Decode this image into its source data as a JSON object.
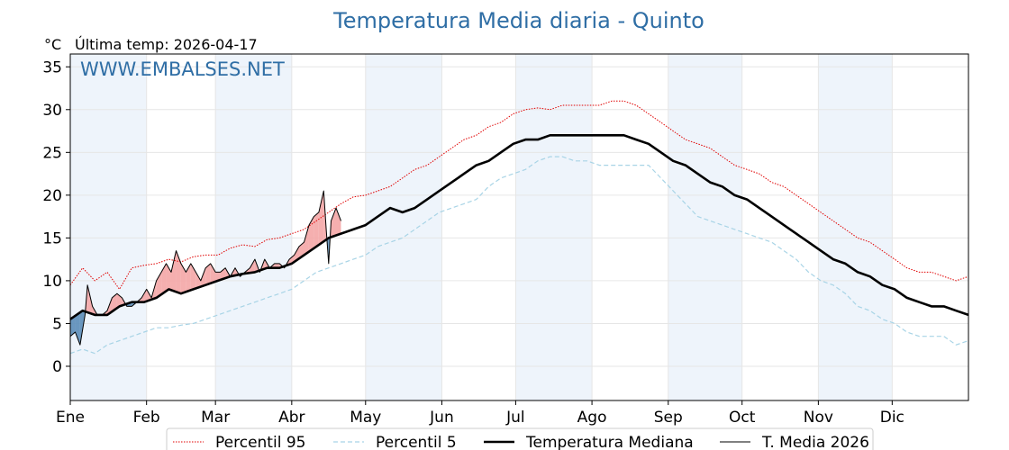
{
  "chart_data": {
    "type": "line",
    "title": "Temperatura Media diaria - Quinto",
    "unit_label": "°C",
    "last_temp_label": "Última temp: 2026-04-17",
    "watermark": "WWW.EMBALSES.NET",
    "xlabel": "",
    "ylabel": "",
    "x_ticks": [
      "Ene",
      "Feb",
      "Mar",
      "Abr",
      "May",
      "Jun",
      "Jul",
      "Ago",
      "Sep",
      "Oct",
      "Nov",
      "Dic"
    ],
    "x_tick_days": [
      0,
      31,
      59,
      90,
      120,
      151,
      181,
      212,
      243,
      273,
      304,
      334
    ],
    "y_ticks": [
      0,
      5,
      10,
      15,
      20,
      25,
      30,
      35
    ],
    "xlim": [
      0,
      365
    ],
    "ylim": [
      -4,
      36.5
    ],
    "grid": true,
    "legend_position": "bottom-center",
    "colors": {
      "p95": "#e00000",
      "p5": "#a8d4e6",
      "median": "#000000",
      "current": "#000000",
      "above_fill": "#f4a6a6",
      "below_fill": "#5b8db8",
      "band": "#eef4fb",
      "title": "#2f6ea5"
    },
    "series": [
      {
        "name": "Percentil 95",
        "style": "dotted",
        "points": [
          [
            0,
            9.5
          ],
          [
            5,
            11.5
          ],
          [
            10,
            10
          ],
          [
            15,
            11
          ],
          [
            20,
            9
          ],
          [
            25,
            11.5
          ],
          [
            30,
            11.8
          ],
          [
            35,
            12
          ],
          [
            40,
            12.5
          ],
          [
            45,
            12.2
          ],
          [
            50,
            12.8
          ],
          [
            55,
            13
          ],
          [
            60,
            13
          ],
          [
            65,
            13.8
          ],
          [
            70,
            14.2
          ],
          [
            75,
            14
          ],
          [
            80,
            14.8
          ],
          [
            85,
            15
          ],
          [
            90,
            15.5
          ],
          [
            95,
            16
          ],
          [
            100,
            17
          ],
          [
            105,
            18
          ],
          [
            110,
            19
          ],
          [
            115,
            19.8
          ],
          [
            120,
            20
          ],
          [
            125,
            20.5
          ],
          [
            130,
            21
          ],
          [
            135,
            22
          ],
          [
            140,
            23
          ],
          [
            145,
            23.5
          ],
          [
            150,
            24.5
          ],
          [
            155,
            25.5
          ],
          [
            160,
            26.5
          ],
          [
            165,
            27
          ],
          [
            170,
            28
          ],
          [
            175,
            28.5
          ],
          [
            180,
            29.5
          ],
          [
            185,
            30
          ],
          [
            190,
            30.2
          ],
          [
            195,
            30
          ],
          [
            200,
            30.5
          ],
          [
            205,
            30.5
          ],
          [
            210,
            30.5
          ],
          [
            215,
            30.5
          ],
          [
            220,
            31
          ],
          [
            225,
            31
          ],
          [
            230,
            30.5
          ],
          [
            235,
            29.5
          ],
          [
            240,
            28.5
          ],
          [
            245,
            27.5
          ],
          [
            250,
            26.5
          ],
          [
            255,
            26
          ],
          [
            260,
            25.5
          ],
          [
            265,
            24.5
          ],
          [
            270,
            23.5
          ],
          [
            275,
            23
          ],
          [
            280,
            22.5
          ],
          [
            285,
            21.5
          ],
          [
            290,
            21
          ],
          [
            295,
            20
          ],
          [
            300,
            19
          ],
          [
            305,
            18
          ],
          [
            310,
            17
          ],
          [
            315,
            16
          ],
          [
            320,
            15
          ],
          [
            325,
            14.5
          ],
          [
            330,
            13.5
          ],
          [
            335,
            12.5
          ],
          [
            340,
            11.5
          ],
          [
            345,
            11
          ],
          [
            350,
            11
          ],
          [
            355,
            10.5
          ],
          [
            360,
            10
          ],
          [
            365,
            10.5
          ]
        ]
      },
      {
        "name": "Percentil 5",
        "style": "dashed",
        "points": [
          [
            0,
            1.5
          ],
          [
            5,
            2
          ],
          [
            10,
            1.5
          ],
          [
            15,
            2.5
          ],
          [
            20,
            3
          ],
          [
            25,
            3.5
          ],
          [
            30,
            4
          ],
          [
            35,
            4.5
          ],
          [
            40,
            4.5
          ],
          [
            45,
            4.8
          ],
          [
            50,
            5
          ],
          [
            55,
            5.5
          ],
          [
            60,
            6
          ],
          [
            65,
            6.5
          ],
          [
            70,
            7
          ],
          [
            75,
            7.5
          ],
          [
            80,
            8
          ],
          [
            85,
            8.5
          ],
          [
            90,
            9
          ],
          [
            95,
            10
          ],
          [
            100,
            11
          ],
          [
            105,
            11.5
          ],
          [
            110,
            12
          ],
          [
            115,
            12.5
          ],
          [
            120,
            13
          ],
          [
            125,
            14
          ],
          [
            130,
            14.5
          ],
          [
            135,
            15
          ],
          [
            140,
            16
          ],
          [
            145,
            17
          ],
          [
            150,
            18
          ],
          [
            155,
            18.5
          ],
          [
            160,
            19
          ],
          [
            165,
            19.5
          ],
          [
            170,
            21
          ],
          [
            175,
            22
          ],
          [
            180,
            22.5
          ],
          [
            185,
            23
          ],
          [
            190,
            24
          ],
          [
            195,
            24.5
          ],
          [
            200,
            24.5
          ],
          [
            205,
            24
          ],
          [
            210,
            24
          ],
          [
            215,
            23.5
          ],
          [
            220,
            23.5
          ],
          [
            225,
            23.5
          ],
          [
            230,
            23.5
          ],
          [
            235,
            23.5
          ],
          [
            240,
            22
          ],
          [
            245,
            20.5
          ],
          [
            250,
            19
          ],
          [
            255,
            17.5
          ],
          [
            260,
            17
          ],
          [
            265,
            16.5
          ],
          [
            270,
            16
          ],
          [
            275,
            15.5
          ],
          [
            280,
            15
          ],
          [
            285,
            14.5
          ],
          [
            290,
            13.5
          ],
          [
            295,
            12.5
          ],
          [
            300,
            11
          ],
          [
            305,
            10
          ],
          [
            310,
            9.5
          ],
          [
            315,
            8.5
          ],
          [
            320,
            7
          ],
          [
            325,
            6.5
          ],
          [
            330,
            5.5
          ],
          [
            335,
            5
          ],
          [
            340,
            4
          ],
          [
            345,
            3.5
          ],
          [
            350,
            3.5
          ],
          [
            355,
            3.5
          ],
          [
            360,
            2.5
          ],
          [
            365,
            3
          ]
        ]
      },
      {
        "name": "Temperatura Mediana",
        "style": "solid-thick",
        "points": [
          [
            0,
            5.5
          ],
          [
            5,
            6.5
          ],
          [
            10,
            6
          ],
          [
            15,
            6
          ],
          [
            20,
            7
          ],
          [
            25,
            7.5
          ],
          [
            30,
            7.5
          ],
          [
            35,
            8
          ],
          [
            40,
            9
          ],
          [
            45,
            8.5
          ],
          [
            50,
            9
          ],
          [
            55,
            9.5
          ],
          [
            60,
            10
          ],
          [
            65,
            10.5
          ],
          [
            70,
            10.8
          ],
          [
            75,
            11
          ],
          [
            80,
            11.5
          ],
          [
            85,
            11.5
          ],
          [
            90,
            12
          ],
          [
            95,
            13
          ],
          [
            100,
            14
          ],
          [
            105,
            15
          ],
          [
            110,
            15.5
          ],
          [
            115,
            16
          ],
          [
            120,
            16.5
          ],
          [
            125,
            17.5
          ],
          [
            130,
            18.5
          ],
          [
            135,
            18
          ],
          [
            140,
            18.5
          ],
          [
            145,
            19.5
          ],
          [
            150,
            20.5
          ],
          [
            155,
            21.5
          ],
          [
            160,
            22.5
          ],
          [
            165,
            23.5
          ],
          [
            170,
            24
          ],
          [
            175,
            25
          ],
          [
            180,
            26
          ],
          [
            185,
            26.5
          ],
          [
            190,
            26.5
          ],
          [
            195,
            27
          ],
          [
            200,
            27
          ],
          [
            205,
            27
          ],
          [
            210,
            27
          ],
          [
            215,
            27
          ],
          [
            220,
            27
          ],
          [
            225,
            27
          ],
          [
            230,
            26.5
          ],
          [
            235,
            26
          ],
          [
            240,
            25
          ],
          [
            245,
            24
          ],
          [
            250,
            23.5
          ],
          [
            255,
            22.5
          ],
          [
            260,
            21.5
          ],
          [
            265,
            21
          ],
          [
            270,
            20
          ],
          [
            275,
            19.5
          ],
          [
            280,
            18.5
          ],
          [
            285,
            17.5
          ],
          [
            290,
            16.5
          ],
          [
            295,
            15.5
          ],
          [
            300,
            14.5
          ],
          [
            305,
            13.5
          ],
          [
            310,
            12.5
          ],
          [
            315,
            12
          ],
          [
            320,
            11
          ],
          [
            325,
            10.5
          ],
          [
            330,
            9.5
          ],
          [
            335,
            9
          ],
          [
            340,
            8
          ],
          [
            345,
            7.5
          ],
          [
            350,
            7
          ],
          [
            355,
            7
          ],
          [
            360,
            6.5
          ],
          [
            365,
            6
          ]
        ]
      },
      {
        "name": "T. Media 2026",
        "style": "solid-thin",
        "points": [
          [
            0,
            3.5
          ],
          [
            2,
            4
          ],
          [
            4,
            2.5
          ],
          [
            6,
            6
          ],
          [
            7,
            9.5
          ],
          [
            9,
            7
          ],
          [
            11,
            6
          ],
          [
            13,
            6
          ],
          [
            15,
            6.5
          ],
          [
            17,
            8
          ],
          [
            19,
            8.5
          ],
          [
            21,
            8
          ],
          [
            23,
            7
          ],
          [
            25,
            7
          ],
          [
            27,
            7.5
          ],
          [
            29,
            8
          ],
          [
            31,
            9
          ],
          [
            33,
            8
          ],
          [
            35,
            10
          ],
          [
            37,
            11
          ],
          [
            39,
            12
          ],
          [
            41,
            11
          ],
          [
            43,
            13.5
          ],
          [
            45,
            12
          ],
          [
            47,
            11
          ],
          [
            49,
            12
          ],
          [
            51,
            11
          ],
          [
            53,
            10
          ],
          [
            55,
            11.5
          ],
          [
            57,
            12
          ],
          [
            59,
            11
          ],
          [
            61,
            11
          ],
          [
            63,
            11.5
          ],
          [
            65,
            10.5
          ],
          [
            67,
            11.5
          ],
          [
            69,
            10.5
          ],
          [
            71,
            11
          ],
          [
            73,
            11.5
          ],
          [
            75,
            12.5
          ],
          [
            77,
            11
          ],
          [
            79,
            12.5
          ],
          [
            81,
            11.5
          ],
          [
            83,
            12
          ],
          [
            85,
            12
          ],
          [
            87,
            11.5
          ],
          [
            89,
            12.5
          ],
          [
            91,
            13
          ],
          [
            93,
            14
          ],
          [
            95,
            14.5
          ],
          [
            97,
            16.5
          ],
          [
            99,
            17.5
          ],
          [
            101,
            18
          ],
          [
            103,
            20.5
          ],
          [
            104,
            16
          ],
          [
            105,
            12
          ],
          [
            106,
            17
          ],
          [
            108,
            18.5
          ],
          [
            110,
            17
          ]
        ]
      }
    ]
  },
  "legend": {
    "items": [
      {
        "label": "Percentil 95"
      },
      {
        "label": "Percentil 5"
      },
      {
        "label": "Temperatura Mediana"
      },
      {
        "label": "T. Media 2026"
      }
    ]
  }
}
